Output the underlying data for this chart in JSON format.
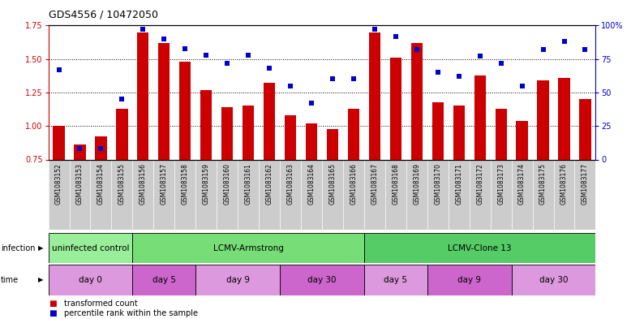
{
  "title": "GDS4556 / 10472050",
  "samples": [
    "GSM1083152",
    "GSM1083153",
    "GSM1083154",
    "GSM1083155",
    "GSM1083156",
    "GSM1083157",
    "GSM1083158",
    "GSM1083159",
    "GSM1083160",
    "GSM1083161",
    "GSM1083162",
    "GSM1083163",
    "GSM1083164",
    "GSM1083165",
    "GSM1083166",
    "GSM1083167",
    "GSM1083168",
    "GSM1083169",
    "GSM1083170",
    "GSM1083171",
    "GSM1083172",
    "GSM1083173",
    "GSM1083174",
    "GSM1083175",
    "GSM1083176",
    "GSM1083177"
  ],
  "bar_values": [
    1.0,
    0.86,
    0.92,
    1.13,
    1.7,
    1.62,
    1.48,
    1.27,
    1.14,
    1.15,
    1.32,
    1.08,
    1.02,
    0.98,
    1.13,
    1.7,
    1.51,
    1.62,
    1.18,
    1.15,
    1.38,
    1.13,
    1.04,
    1.34,
    1.36,
    1.2
  ],
  "dot_values": [
    67,
    8,
    8,
    45,
    97,
    90,
    83,
    78,
    72,
    78,
    68,
    55,
    42,
    60,
    60,
    97,
    92,
    82,
    65,
    62,
    77,
    72,
    55,
    82,
    88,
    82
  ],
  "ylim_left": [
    0.75,
    1.75
  ],
  "ylim_right": [
    0,
    100
  ],
  "yticks_left": [
    0.75,
    1.0,
    1.25,
    1.5,
    1.75
  ],
  "yticks_right": [
    0,
    25,
    50,
    75,
    100
  ],
  "bar_color": "#cc0000",
  "dot_color": "#0000cc",
  "bar_bottom": 0.75,
  "tick_bg_color": "#cccccc",
  "plot_bg_color": "#ffffff",
  "inf_groups": [
    {
      "label": "uninfected control",
      "start": 0,
      "end": 4,
      "color": "#99ee99"
    },
    {
      "label": "LCMV-Armstrong",
      "start": 4,
      "end": 15,
      "color": "#77dd77"
    },
    {
      "label": "LCMV-Clone 13",
      "start": 15,
      "end": 26,
      "color": "#55cc66"
    }
  ],
  "time_groups": [
    {
      "label": "day 0",
      "start": 0,
      "end": 4,
      "color": "#dd99dd"
    },
    {
      "label": "day 5",
      "start": 4,
      "end": 7,
      "color": "#cc66cc"
    },
    {
      "label": "day 9",
      "start": 7,
      "end": 11,
      "color": "#dd99dd"
    },
    {
      "label": "day 30",
      "start": 11,
      "end": 15,
      "color": "#cc66cc"
    },
    {
      "label": "day 5",
      "start": 15,
      "end": 18,
      "color": "#dd99dd"
    },
    {
      "label": "day 9",
      "start": 18,
      "end": 22,
      "color": "#cc66cc"
    },
    {
      "label": "day 30",
      "start": 22,
      "end": 26,
      "color": "#dd99dd"
    }
  ],
  "n_samples": 26,
  "legend_bar_label": "transformed count",
  "legend_dot_label": "percentile rank within the sample"
}
